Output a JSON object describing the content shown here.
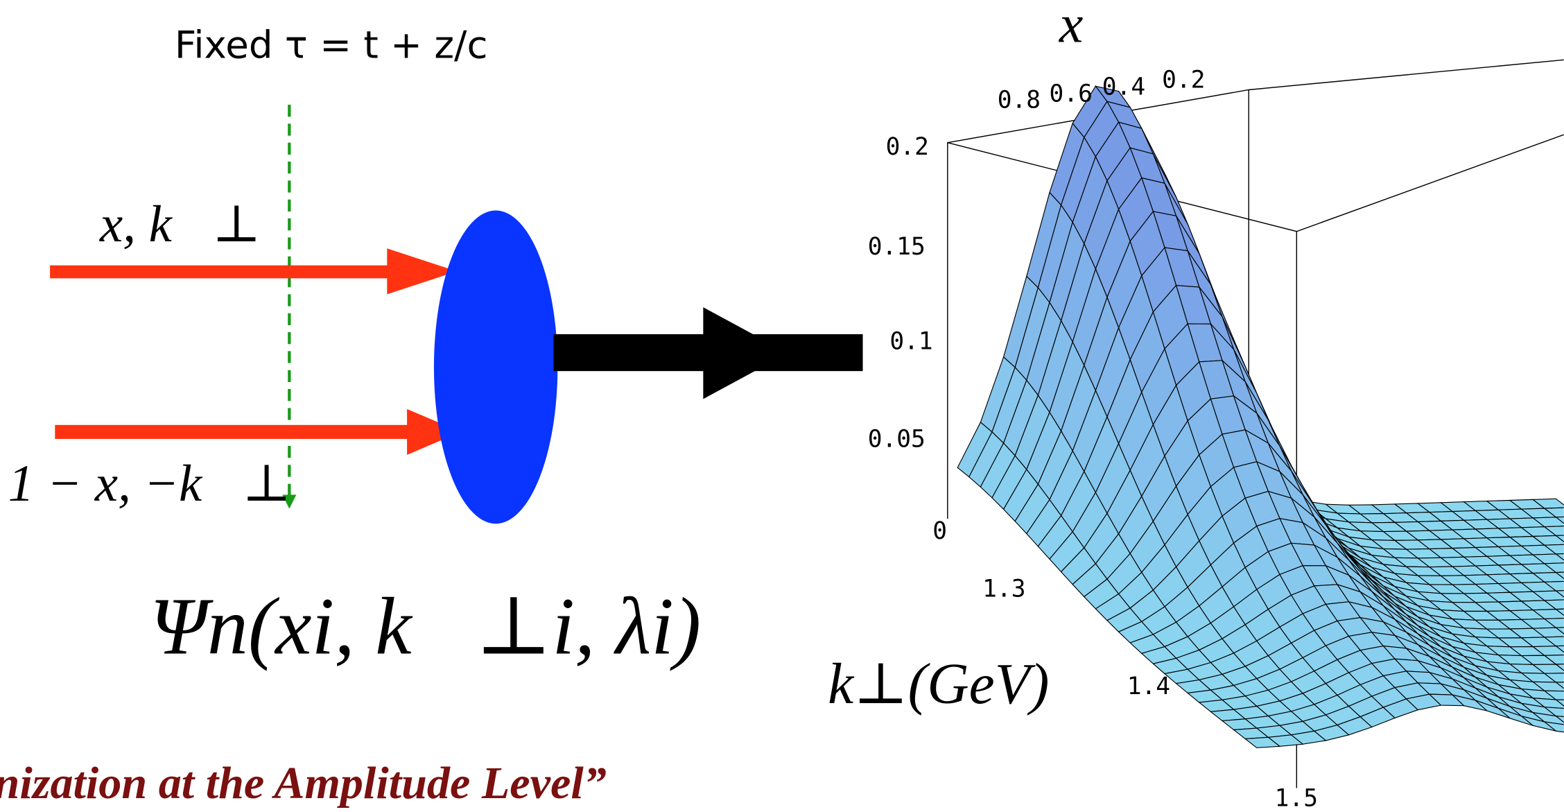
{
  "diagram": {
    "frame_label": "Fixed τ = t + z/c",
    "upper_particle": "x, k⃗⊥",
    "lower_particle": "1 − x, −k⃗⊥",
    "wavefunction": "Ψn(xi, k⃗⊥i, λi)",
    "caption": "nization at the Amplitude Level”"
  },
  "plot": {
    "x_label": "x",
    "k_label": "k⊥(GeV)",
    "x_ticks": [
      "0.8",
      "0.6",
      "0.4",
      "0.2"
    ],
    "z_ticks": [
      "0.2",
      "0.15",
      "0.1",
      "0.05",
      "0"
    ],
    "k_ticks": [
      "1.3",
      "1.4",
      "1.5"
    ]
  }
}
